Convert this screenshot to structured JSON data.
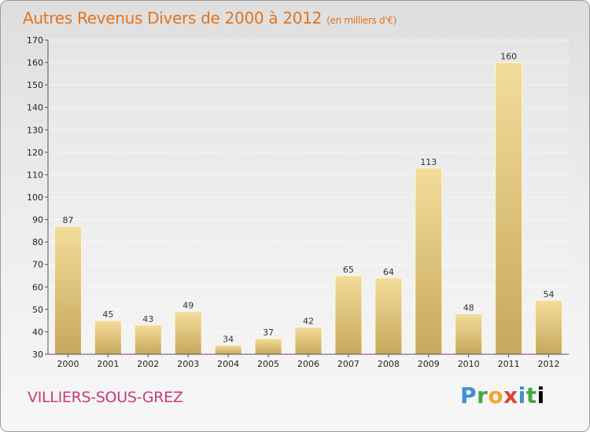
{
  "header": {
    "title": "Autres Revenus Divers de 2000 à 2012",
    "unit": "(en milliers d'€)"
  },
  "footer": {
    "city": "VILLIERS-SOUS-GREZ",
    "logo_letters": [
      "P",
      "r",
      "o",
      "x",
      "i",
      "t",
      "i"
    ]
  },
  "colors": {
    "title": "#e4731e",
    "city": "#c83a7b",
    "bar_light": "#f3dc9a",
    "bar_dark": "#c7a85c"
  },
  "chart_data": {
    "type": "bar",
    "title": "Autres Revenus Divers de 2000 à 2012",
    "subtitle": "(en milliers d'€)",
    "categories": [
      "2000",
      "2001",
      "2002",
      "2003",
      "2004",
      "2005",
      "2006",
      "2007",
      "2008",
      "2009",
      "2010",
      "2011",
      "2012"
    ],
    "values": [
      87,
      45,
      43,
      49,
      34,
      37,
      42,
      65,
      64,
      113,
      48,
      160,
      54
    ],
    "ylim": [
      30,
      170
    ],
    "yticks": [
      30,
      40,
      50,
      60,
      70,
      80,
      90,
      100,
      110,
      120,
      130,
      140,
      150,
      160,
      170
    ],
    "grid": true
  }
}
